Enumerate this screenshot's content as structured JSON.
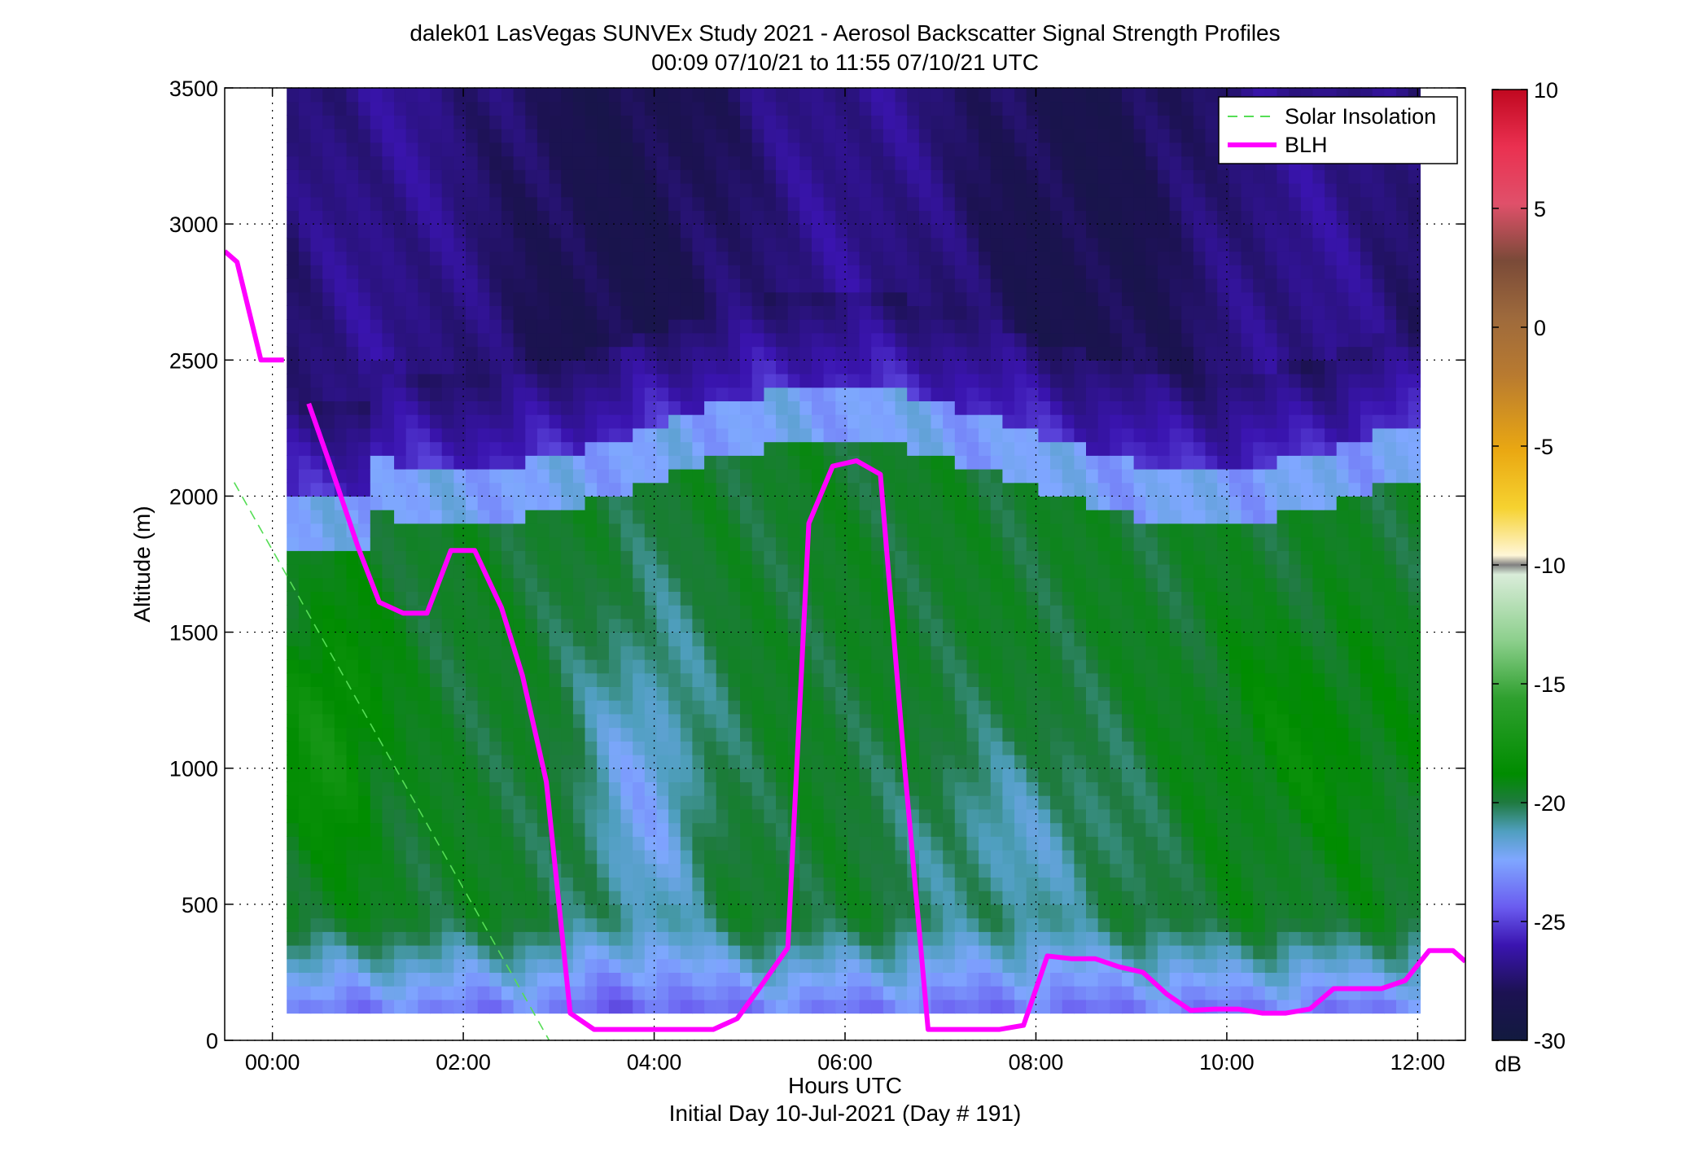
{
  "figure": {
    "title_line1": "dalek01 LasVegas SUNVEx Study 2021 - Aerosol Backscatter Signal Strength Profiles",
    "title_line2": "00:09 07/10/21 to 11:55 07/10/21  UTC",
    "xlabel": "Hours UTC",
    "xlabel2": "Initial Day 10-Jul-2021 (Day # 191)",
    "ylabel": "Altitude (m)",
    "colorbar_unit": "dB"
  },
  "chart_data": {
    "type": "heatmap",
    "title": "dalek01 LasVegas SUNVEx Study 2021 - Aerosol Backscatter Signal Strength Profiles",
    "subtitle": "00:09 07/10/21 to 11:55 07/10/21  UTC",
    "xlabel": "Hours UTC",
    "ylabel": "Altitude (m)",
    "xlim": [
      -0.5,
      12.5
    ],
    "ylim": [
      0,
      3500
    ],
    "grid": true,
    "legend_position": "top-right",
    "x_ticks": [
      0,
      2,
      4,
      6,
      8,
      10,
      12
    ],
    "x_tick_labels": [
      "00:00",
      "02:00",
      "04:00",
      "06:00",
      "08:00",
      "10:00",
      "12:00"
    ],
    "y_ticks": [
      0,
      500,
      1000,
      1500,
      2000,
      2500,
      3000,
      3500
    ],
    "y_tick_labels": [
      "0",
      "500",
      "1000",
      "1500",
      "2000",
      "2500",
      "3000",
      "3500"
    ],
    "colorbar": {
      "label": "dB",
      "range": [
        -30,
        10
      ],
      "ticks": [
        10,
        5,
        0,
        -5,
        -10,
        -15,
        -20,
        -25,
        -30
      ],
      "tick_labels": [
        "10",
        "5",
        "0",
        "-5",
        "-10",
        "-15",
        "-20",
        "-25",
        "-30"
      ]
    },
    "heatmap": {
      "time_range_hours": [
        0.15,
        11.92
      ],
      "altitude_range_m": [
        100,
        3500
      ],
      "typical_profile_db": [
        {
          "altitude_m": 3500,
          "db": -28
        },
        {
          "altitude_m": 2500,
          "db": -25
        },
        {
          "altitude_m": 2100,
          "db": -23
        },
        {
          "altitude_m": 1500,
          "db": -19
        },
        {
          "altitude_m": 500,
          "db": -22
        },
        {
          "altitude_m": 100,
          "db": -24
        }
      ]
    },
    "series": [
      {
        "name": "Solar Insolation",
        "color": "#55dd55",
        "style": "dashed",
        "x": [
          -0.4,
          2.9
        ],
        "y": [
          2050,
          0
        ]
      },
      {
        "name": "BLH",
        "color": "#ff00ff",
        "style": "solid",
        "segments": [
          {
            "x": [
              -0.5,
              -0.37,
              -0.12,
              0.12
            ],
            "y": [
              2900,
              2860,
              2500,
              2500
            ]
          },
          {
            "x": [
              0.38,
              0.62,
              0.9,
              1.12,
              1.37,
              1.62,
              1.87,
              2.12,
              2.4,
              2.62,
              2.87,
              3.12,
              3.37,
              3.62,
              3.87,
              4.12,
              4.37,
              4.62,
              4.87,
              5.12,
              5.4,
              5.62,
              5.87,
              6.12,
              6.37,
              6.62,
              6.87,
              7.12,
              7.37,
              7.62,
              7.87,
              8.12,
              8.37,
              8.62,
              8.87,
              9.12,
              9.37,
              9.62,
              9.87,
              10.12,
              10.37,
              10.62,
              10.87,
              11.12,
              11.37,
              11.62,
              11.87,
              12.12,
              12.37,
              12.5
            ],
            "y": [
              2340,
              2100,
              1810,
              1610,
              1570,
              1570,
              1800,
              1800,
              1590,
              1340,
              950,
              100,
              40,
              40,
              40,
              40,
              40,
              40,
              80,
              200,
              340,
              1900,
              2110,
              2130,
              2080,
              1020,
              40,
              40,
              40,
              40,
              55,
              310,
              300,
              300,
              270,
              250,
              170,
              110,
              115,
              115,
              100,
              100,
              115,
              190,
              190,
              190,
              220,
              330,
              330,
              290
            ]
          }
        ]
      }
    ]
  }
}
